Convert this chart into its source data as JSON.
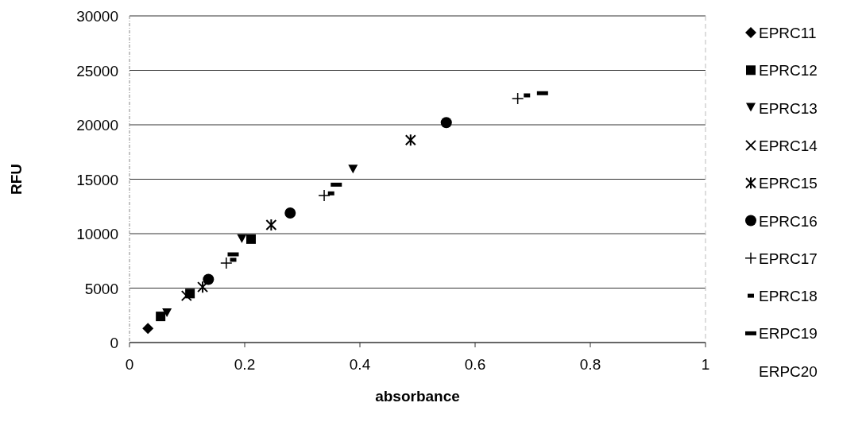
{
  "chart_data": {
    "type": "scatter",
    "xlabel": "absorbance",
    "ylabel": "RFU",
    "xlim": [
      0,
      1
    ],
    "xticks": [
      0,
      0.2,
      0.4,
      0.6,
      0.8,
      1
    ],
    "ylim": [
      0,
      30000
    ],
    "yticks": [
      0,
      5000,
      10000,
      15000,
      20000,
      25000,
      30000
    ],
    "grid": "y",
    "legend": "right",
    "series": [
      {
        "name": "EPRC11",
        "color": "#000000",
        "marker": "diamond",
        "x": [
          0.032
        ],
        "values": [
          1300
        ]
      },
      {
        "name": "EPRC12",
        "color": "#000000",
        "marker": "square",
        "x": [
          0.054,
          0.105,
          0.211
        ],
        "values": [
          2400,
          4500,
          9500
        ]
      },
      {
        "name": "EPRC13",
        "color": "#000000",
        "marker": "triangle",
        "x": [
          0.065,
          0.195,
          0.388
        ],
        "values": [
          2700,
          9500,
          15900
        ]
      },
      {
        "name": "EPRC14",
        "color": "#000000",
        "marker": "cross",
        "x": [
          0.099
        ],
        "values": [
          4300
        ]
      },
      {
        "name": "EPRC15",
        "color": "#000000",
        "x": [
          0.127,
          0.246,
          0.488
        ],
        "values": [
          5100,
          10800,
          18600
        ]
      },
      {
        "name": "EPRC16",
        "color": "#000000",
        "marker": "circle",
        "x": [
          0.137,
          0.279,
          0.55
        ],
        "values": [
          5800,
          11900,
          20200
        ]
      },
      {
        "name": "EPRC17",
        "color": "#000000",
        "x": [
          0.168,
          0.338,
          0.674
        ],
        "values": [
          7300,
          13500,
          22400
        ]
      },
      {
        "name": "EPRC18",
        "color": "#000000",
        "x": [
          0.18,
          0.35,
          0.69
        ],
        "values": [
          7600,
          13700,
          22700
        ]
      },
      {
        "name": "ERPC19",
        "color": "#000000",
        "x": [
          0.18,
          0.359,
          0.717
        ],
        "values": [
          8100,
          14500,
          22900
        ]
      },
      {
        "name": "ERPC20",
        "color": "#000000"
      }
    ]
  }
}
